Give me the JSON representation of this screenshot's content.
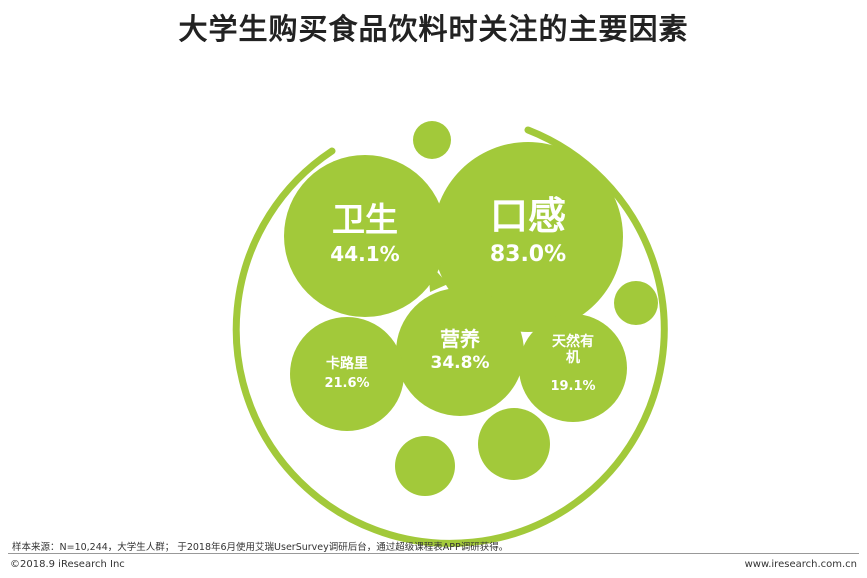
{
  "page": {
    "title": "大学生购买食品饮料时关注的主要因素",
    "source_note": "样本来源：N=10,244，大学生人群； 于2018年6月使用艾瑞UserSurvey调研后台，通过超级课程表APP调研获得。",
    "copyright": "©2018.9 iResearch Inc",
    "website": "www.iresearch.com.cn"
  },
  "colors": {
    "bubble": "#a2c93a",
    "ring": "#a2c93a",
    "label": "#ffffff"
  },
  "chart_data": {
    "type": "bubble",
    "title": "大学生购买食品饮料时关注的主要因素",
    "unit": "%",
    "series": [
      {
        "name": "口感",
        "value": 83.0,
        "value_label": "83.0%"
      },
      {
        "name": "卫生",
        "value": 44.1,
        "value_label": "44.1%"
      },
      {
        "name": "营养",
        "value": 34.8,
        "value_label": "34.8%"
      },
      {
        "name": "卡路里",
        "value": 21.6,
        "value_label": "21.6%"
      },
      {
        "name": "天然有机",
        "value": 19.1,
        "value_label": "19.1%"
      }
    ]
  }
}
